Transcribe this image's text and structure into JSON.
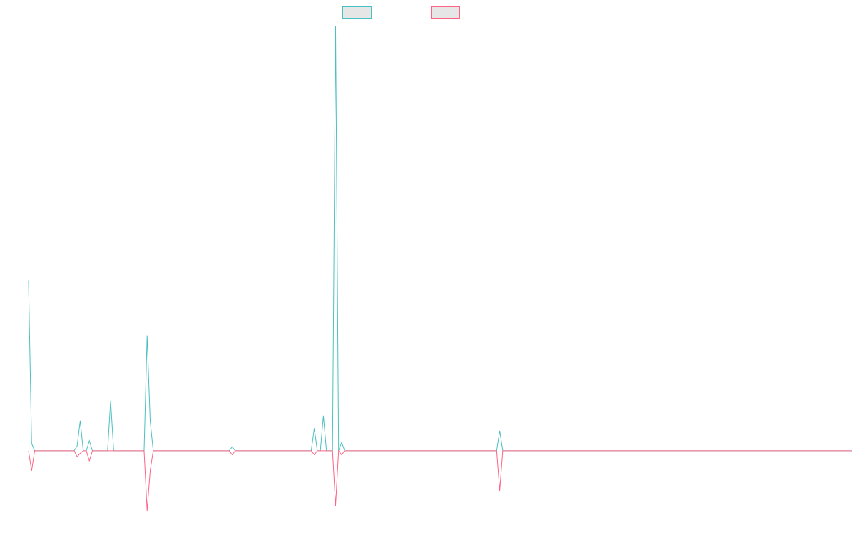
{
  "chart_data": {
    "type": "line",
    "title": "",
    "xlabel": "",
    "ylabel": "",
    "x_count": 272,
    "ylim": [
      -12,
      85
    ],
    "grid": false,
    "legend_placement": "top-center",
    "series": [
      {
        "color": "#4bc0c0",
        "swatch_fill": "#e6e6e6",
        "points": [
          [
            0,
            34
          ],
          [
            1,
            1.5
          ],
          [
            2,
            0
          ],
          [
            15,
            0
          ],
          [
            16,
            1
          ],
          [
            17,
            6
          ],
          [
            18,
            0
          ],
          [
            19,
            0
          ],
          [
            20,
            2
          ],
          [
            21,
            0
          ],
          [
            26,
            0
          ],
          [
            27,
            10
          ],
          [
            28,
            0
          ],
          [
            38,
            0
          ],
          [
            39,
            23
          ],
          [
            40,
            6
          ],
          [
            41,
            0
          ],
          [
            66,
            0
          ],
          [
            67,
            0.8
          ],
          [
            68,
            0
          ],
          [
            93,
            0
          ],
          [
            94,
            4.5
          ],
          [
            95,
            0
          ],
          [
            96,
            0
          ],
          [
            97,
            7
          ],
          [
            98,
            0
          ],
          [
            100,
            0
          ],
          [
            101,
            85
          ],
          [
            102,
            0
          ],
          [
            103,
            1.7
          ],
          [
            104,
            0
          ],
          [
            154,
            0
          ],
          [
            155,
            4
          ],
          [
            156,
            0
          ],
          [
            271,
            0
          ]
        ]
      },
      {
        "color": "#ff6384",
        "swatch_fill": "#e6e6e6",
        "points": [
          [
            0,
            0
          ],
          [
            1,
            -4
          ],
          [
            2,
            0
          ],
          [
            15,
            0
          ],
          [
            16,
            -1.2
          ],
          [
            17,
            -0.5
          ],
          [
            18,
            0
          ],
          [
            19,
            0
          ],
          [
            20,
            -2
          ],
          [
            21,
            0
          ],
          [
            38,
            0
          ],
          [
            39,
            -12
          ],
          [
            40,
            -4
          ],
          [
            41,
            0
          ],
          [
            66,
            0
          ],
          [
            67,
            -0.8
          ],
          [
            68,
            0
          ],
          [
            93,
            0
          ],
          [
            94,
            -0.8
          ],
          [
            95,
            0
          ],
          [
            100,
            0
          ],
          [
            101,
            -11
          ],
          [
            102,
            0
          ],
          [
            103,
            -0.8
          ],
          [
            104,
            0
          ],
          [
            154,
            0
          ],
          [
            155,
            -8
          ],
          [
            156,
            0
          ],
          [
            271,
            0
          ]
        ]
      }
    ]
  }
}
